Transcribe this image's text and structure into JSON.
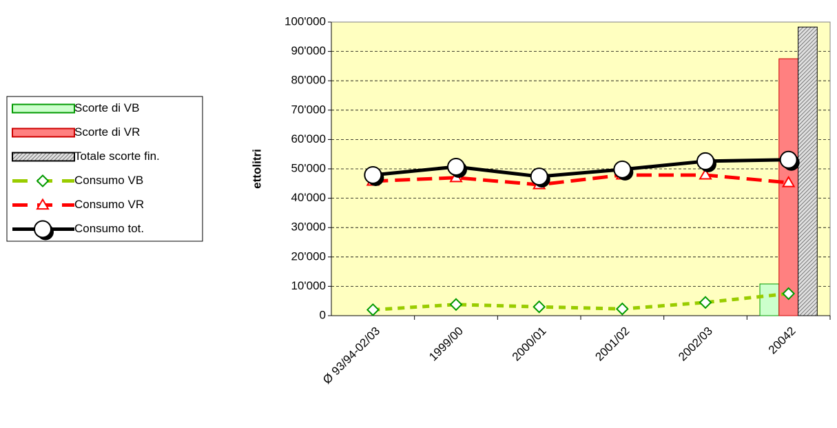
{
  "chart_data": {
    "type": "combo",
    "ylabel": "ettolitri",
    "categories": [
      "Ø 93/94-02/03",
      "1999/00",
      "2000/01",
      "2001/02",
      "2002/03",
      "20042"
    ],
    "series": [
      {
        "name": "Scorte di VB",
        "type": "bar",
        "color": "#ccffcc",
        "stroke": "#009900",
        "values": [
          null,
          null,
          null,
          null,
          null,
          10800
        ]
      },
      {
        "name": "Scorte di VR",
        "type": "bar",
        "color": "#ff8080",
        "stroke": "#cc0000",
        "values": [
          null,
          null,
          null,
          null,
          null,
          87500
        ]
      },
      {
        "name": "Totale scorte fin.",
        "type": "bar",
        "color": "#c0c0c0",
        "stroke": "#000000",
        "hatch": true,
        "values": [
          null,
          null,
          null,
          null,
          null,
          98300
        ]
      },
      {
        "name": "Consumo VB",
        "type": "line",
        "color": "#99cc00",
        "marker": "diamond",
        "marker_color": "#009900",
        "dashed": true,
        "values": [
          2000,
          3800,
          3000,
          2300,
          4500,
          7500
        ]
      },
      {
        "name": "Consumo VR",
        "type": "line",
        "color": "#ff0000",
        "marker": "triangle",
        "marker_color": "#ff0000",
        "dashed": true,
        "values": [
          45800,
          47000,
          44600,
          47900,
          47900,
          45300
        ]
      },
      {
        "name": "Consumo tot.",
        "type": "line",
        "color": "#000000",
        "marker": "circle",
        "marker_color": "#000000",
        "dashed": false,
        "values": [
          47900,
          50700,
          47400,
          49800,
          52600,
          53100
        ]
      }
    ],
    "ylim": [
      0,
      100000
    ],
    "yticks": [
      0,
      {
        "value": 10000,
        "label": "10'000"
      },
      {
        "value": 20000,
        "label": "20'000"
      },
      {
        "value": 30000,
        "label": "30'000"
      },
      {
        "value": 40000,
        "label": "40'000"
      },
      {
        "value": 50000,
        "label": "50'000"
      },
      {
        "value": 60000,
        "label": "60'000"
      },
      {
        "value": 70000,
        "label": "70'000"
      },
      {
        "value": 80000,
        "label": "80'000"
      },
      {
        "value": 90000,
        "label": "90'000"
      },
      {
        "value": 100000,
        "label": "100'000"
      }
    ],
    "grid": true,
    "legend": "left",
    "background": "#ffffc0"
  }
}
